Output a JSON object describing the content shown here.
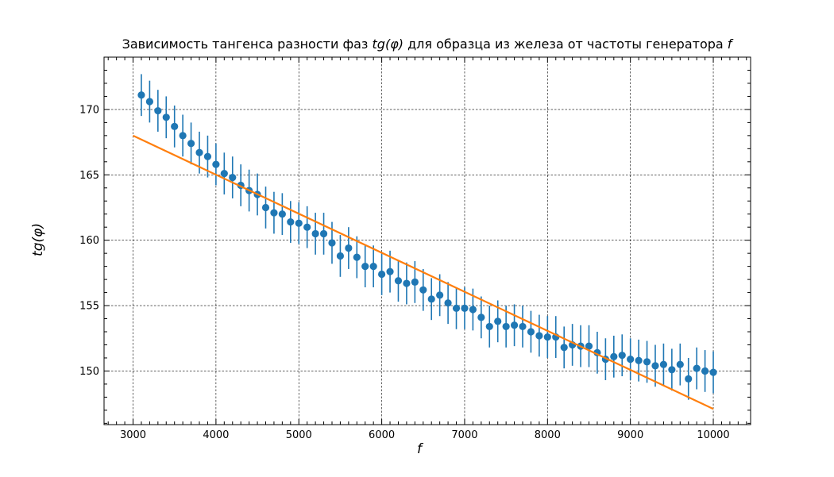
{
  "chart_data": {
    "type": "scatter",
    "title_pre": "Зависимость тангенса разности фаз ",
    "title_mid": " для образца из железа от частоты генератора ",
    "title_sym_y": "tg(φ)",
    "title_sym_x": "f",
    "xlabel": "f",
    "ylabel": "tg(φ)",
    "xlim": [
      2650,
      10450
    ],
    "ylim": [
      145.9,
      174.0
    ],
    "xticks": [
      3000,
      4000,
      5000,
      6000,
      7000,
      8000,
      9000,
      10000
    ],
    "yticks": [
      150,
      155,
      160,
      165,
      170
    ],
    "grid": true,
    "colors": {
      "points": "#1f77b4",
      "fit": "#ff7f0e",
      "grid": "#000000"
    },
    "series": [
      {
        "kind": "errorbar",
        "x": [
          3100,
          3200,
          3300,
          3400,
          3500,
          3600,
          3700,
          3800,
          3900,
          4000,
          4100,
          4200,
          4300,
          4400,
          4500,
          4600,
          4700,
          4800,
          4900,
          5000,
          5100,
          5200,
          5300,
          5400,
          5500,
          5600,
          5700,
          5800,
          5900,
          6000,
          6100,
          6200,
          6300,
          6400,
          6500,
          6600,
          6700,
          6800,
          6900,
          7000,
          7100,
          7200,
          7300,
          7400,
          7500,
          7600,
          7700,
          7800,
          7900,
          8000,
          8100,
          8200,
          8300,
          8400,
          8500,
          8600,
          8700,
          8800,
          8900,
          9000,
          9100,
          9200,
          9300,
          9400,
          9500,
          9600,
          9700,
          9800,
          9900,
          10000
        ],
        "y": [
          171.1,
          170.6,
          169.9,
          169.4,
          168.7,
          168.0,
          167.4,
          166.7,
          166.4,
          165.8,
          165.1,
          164.8,
          164.2,
          163.8,
          163.5,
          162.5,
          162.1,
          162.0,
          161.4,
          161.3,
          161.0,
          160.5,
          160.5,
          159.8,
          158.8,
          159.4,
          158.7,
          158.0,
          158.0,
          157.4,
          157.6,
          156.9,
          156.7,
          156.8,
          156.2,
          155.5,
          155.8,
          155.2,
          154.8,
          154.8,
          154.7,
          154.1,
          153.4,
          153.8,
          153.4,
          153.5,
          153.4,
          153.0,
          152.7,
          152.6,
          152.6,
          151.8,
          152.0,
          151.9,
          151.9,
          151.4,
          150.9,
          151.1,
          151.2,
          150.9,
          150.8,
          150.7,
          150.4,
          150.5,
          150.1,
          150.5,
          149.4,
          150.2,
          150.0,
          149.9
        ],
        "yerr": 1.6
      },
      {
        "kind": "line",
        "x": [
          3000,
          10000
        ],
        "y": [
          168.0,
          147.1
        ]
      }
    ]
  }
}
